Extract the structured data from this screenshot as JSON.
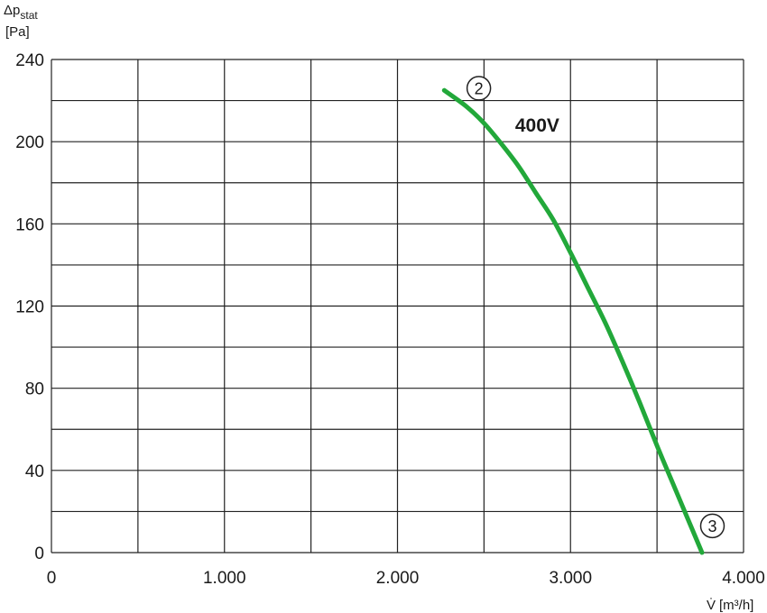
{
  "chart_data": {
    "type": "line",
    "ylabel_symbol": "Δp",
    "ylabel_subscript": "stat",
    "ylabel_unit": "[Pa]",
    "xlabel_symbol": "V̇",
    "xlabel_unit": "[m³/h]",
    "xlim": [
      0,
      4000
    ],
    "ylim": [
      0,
      240
    ],
    "x_ticks": [
      {
        "value": 0,
        "label": "0"
      },
      {
        "value": 1000,
        "label": "1.000"
      },
      {
        "value": 2000,
        "label": "2.000"
      },
      {
        "value": 3000,
        "label": "3.000"
      },
      {
        "value": 4000,
        "label": "4.000"
      }
    ],
    "y_ticks": [
      {
        "value": 0,
        "label": "0"
      },
      {
        "value": 40,
        "label": "40"
      },
      {
        "value": 80,
        "label": "80"
      },
      {
        "value": 120,
        "label": "120"
      },
      {
        "value": 160,
        "label": "160"
      },
      {
        "value": 200,
        "label": "200"
      },
      {
        "value": 240,
        "label": "240"
      }
    ],
    "grid": true,
    "grid_x_step": 500,
    "grid_y_step": 20,
    "series": [
      {
        "name": "400V",
        "color": "#22a83a",
        "points": [
          [
            2270,
            225
          ],
          [
            2400,
            217
          ],
          [
            2500,
            209
          ],
          [
            2600,
            199
          ],
          [
            2700,
            188
          ],
          [
            2800,
            175
          ],
          [
            2900,
            162
          ],
          [
            3000,
            146
          ],
          [
            3100,
            129
          ],
          [
            3200,
            112
          ],
          [
            3300,
            93
          ],
          [
            3400,
            73
          ],
          [
            3500,
            52
          ],
          [
            3600,
            32
          ],
          [
            3700,
            12
          ],
          [
            3760,
            0
          ]
        ]
      }
    ],
    "markers": [
      {
        "label": "2",
        "x": 2470,
        "y": 226
      },
      {
        "label": "3",
        "x": 3820,
        "y": 13
      }
    ],
    "series_label": {
      "text": "400V",
      "x": 2680,
      "y": 208
    }
  }
}
